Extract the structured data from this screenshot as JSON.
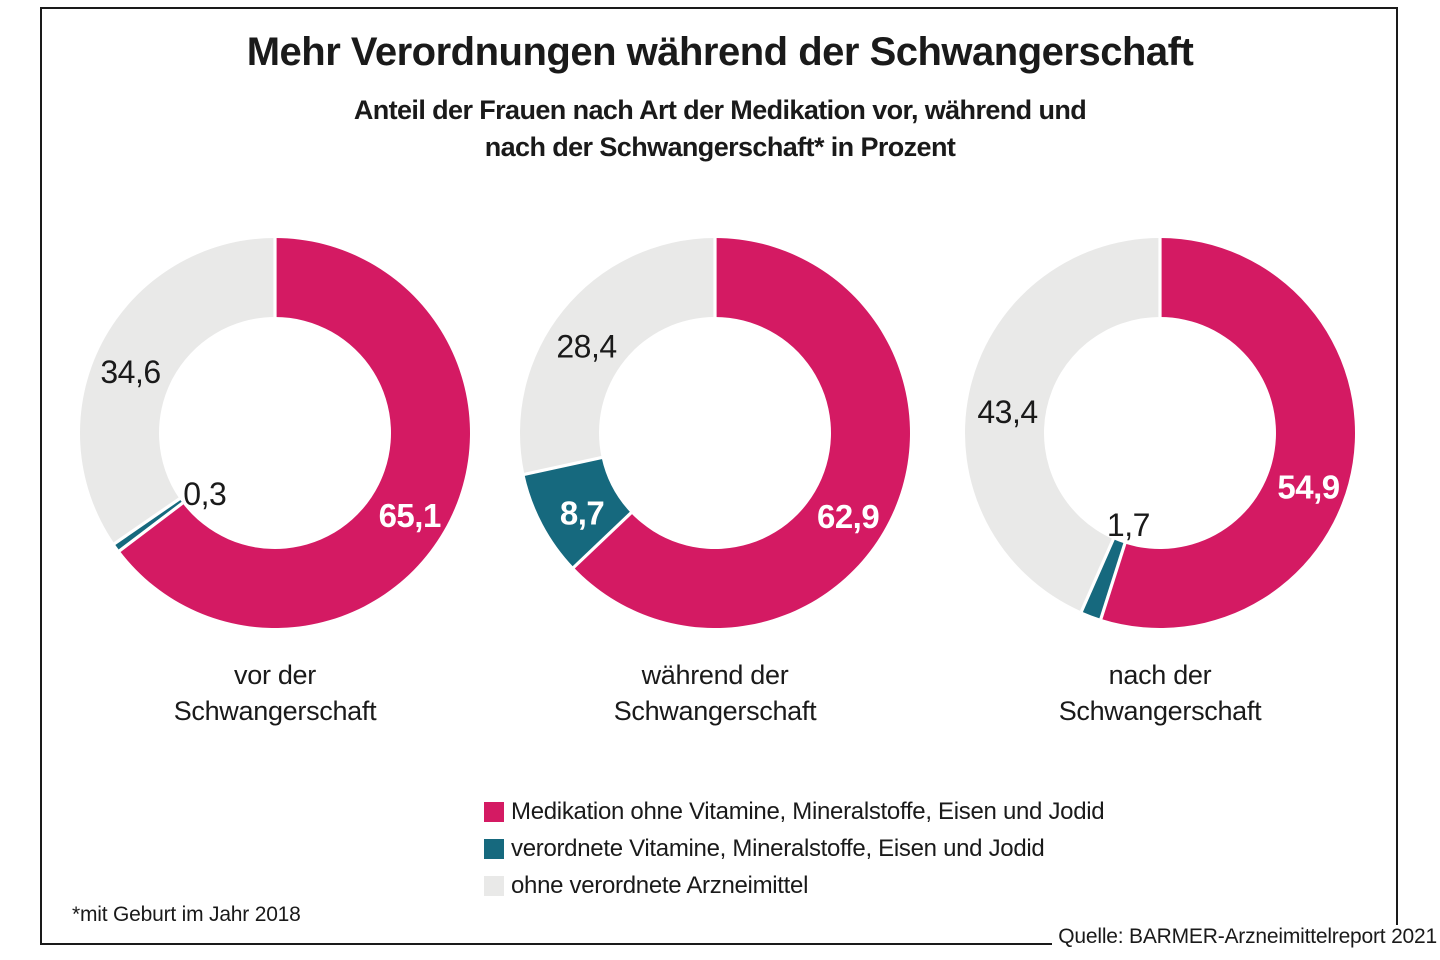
{
  "header": {
    "title": "Mehr Verordnungen während der Schwangerschaft",
    "subtitle_line1": "Anteil der Frauen nach Art der Medikation vor, während und",
    "subtitle_line2": "nach der Schwangerschaft* in Prozent"
  },
  "colors": {
    "pink": "#d41a63",
    "teal": "#16697e",
    "gray": "#e9e9e8",
    "text": "#1a1a1a",
    "white": "#ffffff",
    "border": "#1a1a1a",
    "background": "#ffffff"
  },
  "legend": {
    "items": [
      {
        "label": "Medikation ohne Vitamine, Mineralstoffe, Eisen und Jodid",
        "color_key": "pink"
      },
      {
        "label": "verordnete Vitamine, Mineralstoffe, Eisen und Jodid",
        "color_key": "teal"
      },
      {
        "label": "ohne verordnete Arzneimittel",
        "color_key": "gray"
      }
    ]
  },
  "footnote": "*mit Geburt im Jahr 2018",
  "source": "Quelle: BARMER-Arzneimittelreport 2021",
  "chart_data": [
    {
      "type": "pie",
      "subtype": "donut",
      "title": "vor der Schwangerschaft",
      "title_lines": [
        "vor der",
        "Schwangerschaft"
      ],
      "unit": "percent",
      "start_angle_deg": 0,
      "direction": "clockwise",
      "categories": [
        "Medikation ohne Vitamine, Mineralstoffe, Eisen und Jodid",
        "verordnete Vitamine, Mineralstoffe, Eisen und Jodid",
        "ohne verordnete Arzneimittel"
      ],
      "values": [
        65.1,
        0.3,
        34.6
      ],
      "value_labels": [
        "65,1",
        "0,3",
        "34,6"
      ],
      "color_keys": [
        "pink",
        "teal",
        "gray"
      ]
    },
    {
      "type": "pie",
      "subtype": "donut",
      "title": "während der Schwangerschaft",
      "title_lines": [
        "während der",
        "Schwangerschaft"
      ],
      "unit": "percent",
      "start_angle_deg": 0,
      "direction": "clockwise",
      "categories": [
        "Medikation ohne Vitamine, Mineralstoffe, Eisen und Jodid",
        "verordnete Vitamine, Mineralstoffe, Eisen und Jodid",
        "ohne verordnete Arzneimittel"
      ],
      "values": [
        62.9,
        8.7,
        28.4
      ],
      "value_labels": [
        "62,9",
        "8,7",
        "28,4"
      ],
      "color_keys": [
        "pink",
        "teal",
        "gray"
      ]
    },
    {
      "type": "pie",
      "subtype": "donut",
      "title": "nach der Schwangerschaft",
      "title_lines": [
        "nach der",
        "Schwangerschaft"
      ],
      "unit": "percent",
      "start_angle_deg": 0,
      "direction": "clockwise",
      "categories": [
        "Medikation ohne Vitamine, Mineralstoffe, Eisen und Jodid",
        "verordnete Vitamine, Mineralstoffe, Eisen und Jodid",
        "ohne verordnete Arzneimittel"
      ],
      "values": [
        54.9,
        1.7,
        43.4
      ],
      "value_labels": [
        "54,9",
        "1,7",
        "43,4"
      ],
      "color_keys": [
        "pink",
        "teal",
        "gray"
      ]
    }
  ]
}
